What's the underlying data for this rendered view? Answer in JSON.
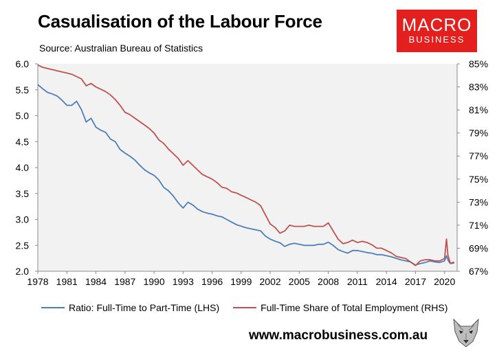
{
  "header": {
    "title": "Casualisation of the Labour Force",
    "source": "Source: Australian Bureau of Statistics"
  },
  "logo": {
    "line1": "MACRO",
    "line2": "BUSINESS",
    "color": "#e4201e"
  },
  "footer": {
    "url": "www.macrobusiness.com.au"
  },
  "chart_data": {
    "type": "line",
    "title": "Casualisation of the Labour Force",
    "xlabel": "",
    "ylabel": "",
    "x_ticks": [
      "1978",
      "1981",
      "1984",
      "1987",
      "1990",
      "1993",
      "1996",
      "1999",
      "2002",
      "2005",
      "2008",
      "2011",
      "2014",
      "2017",
      "2020"
    ],
    "y_left": {
      "lim": [
        2.0,
        6.0
      ],
      "ticks": [
        "2.0",
        "2.5",
        "3.0",
        "3.5",
        "4.0",
        "4.5",
        "5.0",
        "5.5",
        "6.0"
      ]
    },
    "y_right": {
      "lim": [
        67,
        85
      ],
      "ticks": [
        "67%",
        "69%",
        "71%",
        "73%",
        "75%",
        "77%",
        "79%",
        "81%",
        "83%",
        "85%"
      ]
    },
    "xlim": [
      1978,
      2021.3
    ],
    "grid": false,
    "legend_position": "bottom",
    "series": [
      {
        "name": "Ratio: Full-Time to Part-Time (LHS)",
        "axis": "left",
        "color": "#4a7ebb",
        "x": [
          1978,
          1978.5,
          1979,
          1979.5,
          1980,
          1980.5,
          1981,
          1981.5,
          1982,
          1982.5,
          1983,
          1983.5,
          1984,
          1984.5,
          1985,
          1985.5,
          1986,
          1986.5,
          1987,
          1987.5,
          1988,
          1988.5,
          1989,
          1989.5,
          1990,
          1990.5,
          1991,
          1991.5,
          1992,
          1992.5,
          1993,
          1993.5,
          1994,
          1994.5,
          1995,
          1995.5,
          1996,
          1996.5,
          1997,
          1997.5,
          1998,
          1998.5,
          1999,
          1999.5,
          2000,
          2000.5,
          2001,
          2001.5,
          2002,
          2002.5,
          2003,
          2003.5,
          2004,
          2004.5,
          2005,
          2005.5,
          2006,
          2006.5,
          2007,
          2007.5,
          2008,
          2008.5,
          2009,
          2009.5,
          2010,
          2010.5,
          2011,
          2011.5,
          2012,
          2012.5,
          2013,
          2013.5,
          2014,
          2014.5,
          2015,
          2015.5,
          2016,
          2016.5,
          2017,
          2017.5,
          2018,
          2018.5,
          2019,
          2019.5,
          2020,
          2020.2,
          2020.4,
          2020.6,
          2021
        ],
        "values": [
          5.6,
          5.52,
          5.45,
          5.42,
          5.38,
          5.3,
          5.2,
          5.2,
          5.28,
          5.12,
          4.88,
          4.95,
          4.78,
          4.72,
          4.68,
          4.55,
          4.5,
          4.35,
          4.28,
          4.22,
          4.15,
          4.05,
          3.96,
          3.9,
          3.85,
          3.76,
          3.62,
          3.55,
          3.45,
          3.32,
          3.22,
          3.33,
          3.28,
          3.2,
          3.15,
          3.12,
          3.1,
          3.07,
          3.05,
          3.0,
          2.95,
          2.9,
          2.87,
          2.84,
          2.82,
          2.8,
          2.78,
          2.68,
          2.62,
          2.58,
          2.55,
          2.48,
          2.52,
          2.54,
          2.52,
          2.5,
          2.5,
          2.5,
          2.52,
          2.52,
          2.56,
          2.5,
          2.42,
          2.38,
          2.35,
          2.4,
          2.4,
          2.38,
          2.36,
          2.35,
          2.32,
          2.32,
          2.3,
          2.28,
          2.25,
          2.22,
          2.2,
          2.18,
          2.12,
          2.15,
          2.17,
          2.2,
          2.18,
          2.17,
          2.2,
          2.3,
          2.2,
          2.15,
          2.16
        ]
      },
      {
        "name": "Full-Time Share of Total Employment (RHS)",
        "axis": "right",
        "color": "#c0504d",
        "x": [
          1978,
          1978.5,
          1979,
          1979.5,
          1980,
          1980.5,
          1981,
          1981.5,
          1982,
          1982.5,
          1983,
          1983.5,
          1984,
          1984.5,
          1985,
          1985.5,
          1986,
          1986.5,
          1987,
          1987.5,
          1988,
          1988.5,
          1989,
          1989.5,
          1990,
          1990.5,
          1991,
          1991.5,
          1992,
          1992.5,
          1993,
          1993.5,
          1994,
          1994.5,
          1995,
          1995.5,
          1996,
          1996.5,
          1997,
          1997.5,
          1998,
          1998.5,
          1999,
          1999.5,
          2000,
          2000.5,
          2001,
          2001.5,
          2002,
          2002.5,
          2003,
          2003.5,
          2004,
          2004.5,
          2005,
          2005.5,
          2006,
          2006.5,
          2007,
          2007.5,
          2008,
          2008.5,
          2009,
          2009.5,
          2010,
          2010.5,
          2011,
          2011.5,
          2012,
          2012.5,
          2013,
          2013.5,
          2014,
          2014.5,
          2015,
          2015.5,
          2016,
          2016.5,
          2017,
          2017.5,
          2018,
          2018.5,
          2019,
          2019.5,
          2020,
          2020.2,
          2020.35,
          2020.6,
          2021
        ],
        "values": [
          84.9,
          84.7,
          84.6,
          84.5,
          84.4,
          84.3,
          84.2,
          84.1,
          83.9,
          83.7,
          83.1,
          83.3,
          83.0,
          82.8,
          82.6,
          82.3,
          81.9,
          81.4,
          80.8,
          80.6,
          80.3,
          80.0,
          79.7,
          79.4,
          79.0,
          78.4,
          78.1,
          77.6,
          77.2,
          76.8,
          76.2,
          76.6,
          76.2,
          75.8,
          75.4,
          75.2,
          75.0,
          74.7,
          74.3,
          74.2,
          73.9,
          73.8,
          73.6,
          73.4,
          73.2,
          73.0,
          72.7,
          71.9,
          71.1,
          70.8,
          70.3,
          70.5,
          71.0,
          70.9,
          70.9,
          70.9,
          71.0,
          70.9,
          70.9,
          70.9,
          71.2,
          70.5,
          69.8,
          69.4,
          69.5,
          69.7,
          69.5,
          69.6,
          69.5,
          69.3,
          69.0,
          69.0,
          68.8,
          68.6,
          68.3,
          68.2,
          68.1,
          67.8,
          67.5,
          67.9,
          68.0,
          68.0,
          67.9,
          67.9,
          68.1,
          69.8,
          68.4,
          67.7,
          67.8
        ]
      }
    ]
  }
}
